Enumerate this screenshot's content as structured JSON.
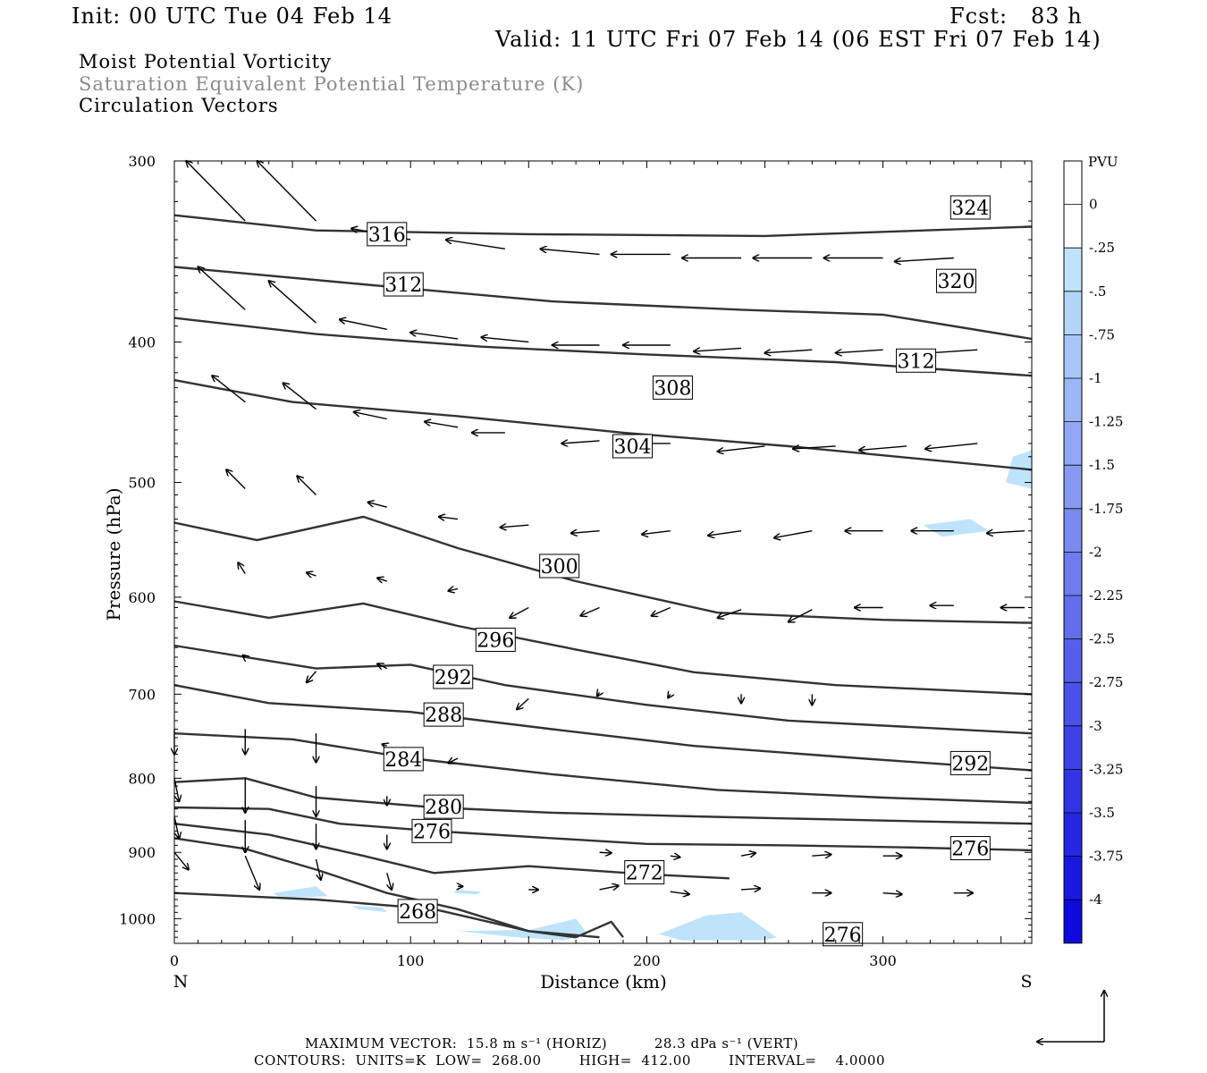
{
  "header": {
    "init": "Init: 00 UTC Tue 04 Feb 14",
    "fcst": "Fcst:   83 h",
    "valid": "Valid: 11 UTC Fri 07 Feb 14 (06 EST Fri 07 Feb 14)",
    "field1": "Moist Potential Vorticity",
    "field2": "Saturation Equivalent Potential Temperature (K)",
    "field3": "Circulation Vectors"
  },
  "footer": {
    "max_vector": "MAXIMUM VECTOR:  15.8 m s⁻¹ (HORIZ)          28.3 dPa s⁻¹ (VERT)",
    "contours": "CONTOURS:  UNITS=K  LOW=  268.00        HIGH=  412.00        INTERVAL=    4.0000"
  },
  "colors": {
    "contour": "#333333",
    "vector": "#000000",
    "shade_light": "#bfe3fb"
  },
  "chart_data": {
    "type": "cross-section",
    "xlabel": "Distance (km)",
    "ylabel": "Pressure (hPa)",
    "xlim": [
      0,
      363
    ],
    "ylim": [
      1040,
      300
    ],
    "y_log": true,
    "x_ticks": [
      0,
      100,
      200,
      300
    ],
    "y_ticks": [
      300,
      400,
      500,
      600,
      700,
      800,
      900,
      1000
    ],
    "x_end_labels": {
      "left": "N",
      "right": "S"
    },
    "colorbar": {
      "unit": "PVU",
      "levels": [
        "0",
        "-.25",
        "-.5",
        "-.75",
        "-1",
        "-1.25",
        "-1.5",
        "-1.75",
        "-2",
        "-2.25",
        "-2.5",
        "-2.75",
        "-3",
        "-3.25",
        "-3.5",
        "-3.75",
        "-4"
      ],
      "colors": [
        "#ffffff",
        "#ffffff",
        "#bfe3fb",
        "#b4d5fa",
        "#a9c6f8",
        "#9db7f6",
        "#92a8f4",
        "#869af2",
        "#7a8bf0",
        "#6e7cee",
        "#626eec",
        "#565fea",
        "#4a51e8",
        "#3e42e6",
        "#3234e4",
        "#2626e2",
        "#1a18e0",
        "#0e0ade"
      ]
    },
    "contour_labels": [
      {
        "v": "316",
        "x": 90,
        "p": 337
      },
      {
        "v": "312",
        "x": 97,
        "p": 365
      },
      {
        "v": "308",
        "x": 211,
        "p": 430
      },
      {
        "v": "304",
        "x": 194,
        "p": 472
      },
      {
        "v": "300",
        "x": 163,
        "p": 571
      },
      {
        "v": "296",
        "x": 136,
        "p": 642
      },
      {
        "v": "292",
        "x": 118,
        "p": 681
      },
      {
        "v": "288",
        "x": 114,
        "p": 723
      },
      {
        "v": "284",
        "x": 97,
        "p": 776
      },
      {
        "v": "280",
        "x": 114,
        "p": 837
      },
      {
        "v": "276",
        "x": 109,
        "p": 870
      },
      {
        "v": "272",
        "x": 199,
        "p": 929
      },
      {
        "v": "268",
        "x": 103,
        "p": 988
      },
      {
        "v": "324",
        "x": 337,
        "p": 323
      },
      {
        "v": "320",
        "x": 331,
        "p": 363
      },
      {
        "v": "312",
        "x": 314,
        "p": 412
      },
      {
        "v": "292",
        "x": 337,
        "p": 781
      },
      {
        "v": "276",
        "x": 337,
        "p": 894
      },
      {
        "v": "276",
        "x": 283,
        "p": 1025
      }
    ],
    "contours": [
      [
        [
          0,
          327
        ],
        [
          60,
          335
        ],
        [
          150,
          337
        ],
        [
          250,
          338
        ],
        [
          363,
          333
        ]
      ],
      [
        [
          0,
          355
        ],
        [
          80,
          365
        ],
        [
          160,
          375
        ],
        [
          240,
          380
        ],
        [
          300,
          383
        ],
        [
          363,
          398
        ]
      ],
      [
        [
          0,
          385
        ],
        [
          60,
          395
        ],
        [
          130,
          403
        ],
        [
          200,
          408
        ],
        [
          280,
          413
        ],
        [
          363,
          422
        ]
      ],
      [
        [
          0,
          425
        ],
        [
          50,
          440
        ],
        [
          120,
          450
        ],
        [
          190,
          462
        ],
        [
          260,
          472
        ],
        [
          363,
          490
        ]
      ],
      [
        [
          0,
          533
        ],
        [
          35,
          548
        ],
        [
          80,
          528
        ],
        [
          120,
          555
        ],
        [
          170,
          585
        ],
        [
          230,
          615
        ],
        [
          300,
          622
        ],
        [
          363,
          625
        ]
      ],
      [
        [
          0,
          604
        ],
        [
          40,
          620
        ],
        [
          80,
          606
        ],
        [
          120,
          628
        ],
        [
          170,
          652
        ],
        [
          220,
          676
        ],
        [
          280,
          690
        ],
        [
          363,
          700
        ]
      ],
      [
        [
          0,
          648
        ],
        [
          60,
          672
        ],
        [
          100,
          668
        ],
        [
          140,
          690
        ],
        [
          200,
          712
        ],
        [
          260,
          730
        ],
        [
          363,
          745
        ]
      ],
      [
        [
          0,
          690
        ],
        [
          40,
          710
        ],
        [
          100,
          720
        ],
        [
          160,
          740
        ],
        [
          220,
          760
        ],
        [
          290,
          775
        ],
        [
          363,
          790
        ]
      ],
      [
        [
          0,
          745
        ],
        [
          50,
          752
        ],
        [
          100,
          775
        ],
        [
          160,
          795
        ],
        [
          230,
          815
        ],
        [
          300,
          825
        ],
        [
          363,
          832
        ]
      ],
      [
        [
          0,
          805
        ],
        [
          30,
          800
        ],
        [
          60,
          825
        ],
        [
          110,
          838
        ],
        [
          160,
          845
        ],
        [
          220,
          850
        ],
        [
          290,
          855
        ],
        [
          363,
          860
        ]
      ],
      [
        [
          0,
          838
        ],
        [
          40,
          840
        ],
        [
          70,
          860
        ],
        [
          110,
          870
        ],
        [
          160,
          880
        ],
        [
          200,
          888
        ],
        [
          260,
          890
        ],
        [
          310,
          893
        ],
        [
          363,
          897
        ]
      ],
      [
        [
          0,
          860
        ],
        [
          40,
          875
        ],
        [
          80,
          905
        ],
        [
          110,
          930
        ],
        [
          150,
          920
        ],
        [
          200,
          932
        ],
        [
          235,
          938
        ]
      ],
      [
        [
          0,
          880
        ],
        [
          30,
          895
        ],
        [
          60,
          925
        ],
        [
          90,
          960
        ],
        [
          120,
          985
        ],
        [
          150,
          1020
        ],
        [
          170,
          1030
        ],
        [
          185,
          1005
        ],
        [
          190,
          1030
        ]
      ],
      [
        [
          0,
          960
        ],
        [
          60,
          970
        ],
        [
          110,
          985
        ],
        [
          150,
          1020
        ],
        [
          180,
          1030
        ]
      ]
    ],
    "shades": [
      {
        "x": [
          42,
          60,
          65,
          45
        ],
        "p": [
          960,
          950,
          965,
          968
        ]
      },
      {
        "x": [
          120,
          130,
          128,
          118
        ],
        "p": [
          955,
          958,
          962,
          960
        ]
      },
      {
        "x": [
          75,
          88,
          90,
          78
        ],
        "p": [
          980,
          982,
          990,
          985
        ]
      },
      {
        "x": [
          317,
          337,
          345,
          325
        ],
        "p": [
          535,
          530,
          540,
          545
        ]
      },
      {
        "x": [
          355,
          363,
          363,
          352
        ],
        "p": [
          480,
          475,
          505,
          500
        ]
      },
      {
        "x": [
          120,
          150,
          170,
          175,
          165,
          145
        ],
        "p": [
          1020,
          1018,
          1000,
          1025,
          1035,
          1030
        ]
      },
      {
        "x": [
          205,
          225,
          240,
          255,
          250,
          215
        ],
        "p": [
          1025,
          995,
          990,
          1030,
          1035,
          1035
        ]
      }
    ],
    "vectors": [
      {
        "x": 30,
        "p": 330,
        "dx": -25,
        "dp": -30
      },
      {
        "x": 60,
        "p": 330,
        "dx": -25,
        "dp": -30
      },
      {
        "x": 100,
        "p": 340,
        "dx": -25,
        "dp": -6
      },
      {
        "x": 140,
        "p": 345,
        "dx": -25,
        "dp": -5
      },
      {
        "x": 180,
        "p": 348,
        "dx": -25,
        "dp": -3
      },
      {
        "x": 210,
        "p": 348,
        "dx": -25,
        "dp": 0
      },
      {
        "x": 240,
        "p": 350,
        "dx": -25,
        "dp": 0
      },
      {
        "x": 270,
        "p": 350,
        "dx": -25,
        "dp": 0
      },
      {
        "x": 300,
        "p": 350,
        "dx": -25,
        "dp": 0
      },
      {
        "x": 330,
        "p": 350,
        "dx": -25,
        "dp": 2
      },
      {
        "x": 30,
        "p": 380,
        "dx": -20,
        "dp": -25
      },
      {
        "x": 60,
        "p": 388,
        "dx": -20,
        "dp": -25
      },
      {
        "x": 90,
        "p": 392,
        "dx": -20,
        "dp": -6
      },
      {
        "x": 120,
        "p": 398,
        "dx": -20,
        "dp": -4
      },
      {
        "x": 150,
        "p": 400,
        "dx": -20,
        "dp": -3
      },
      {
        "x": 180,
        "p": 402,
        "dx": -20,
        "dp": 0
      },
      {
        "x": 210,
        "p": 402,
        "dx": -20,
        "dp": 0
      },
      {
        "x": 240,
        "p": 404,
        "dx": -20,
        "dp": 2
      },
      {
        "x": 270,
        "p": 405,
        "dx": -20,
        "dp": 2
      },
      {
        "x": 300,
        "p": 405,
        "dx": -20,
        "dp": 2
      },
      {
        "x": 340,
        "p": 405,
        "dx": -20,
        "dp": 2
      },
      {
        "x": 30,
        "p": 440,
        "dx": -14,
        "dp": -18
      },
      {
        "x": 60,
        "p": 445,
        "dx": -14,
        "dp": -18
      },
      {
        "x": 90,
        "p": 452,
        "dx": -14,
        "dp": -5
      },
      {
        "x": 120,
        "p": 458,
        "dx": -14,
        "dp": -4
      },
      {
        "x": 140,
        "p": 462,
        "dx": -14,
        "dp": 0
      },
      {
        "x": 180,
        "p": 468,
        "dx": -16,
        "dp": 2
      },
      {
        "x": 210,
        "p": 470,
        "dx": -20,
        "dp": 0
      },
      {
        "x": 250,
        "p": 472,
        "dx": -20,
        "dp": 4
      },
      {
        "x": 280,
        "p": 472,
        "dx": -18,
        "dp": 2
      },
      {
        "x": 310,
        "p": 472,
        "dx": -20,
        "dp": 3
      },
      {
        "x": 340,
        "p": 470,
        "dx": -22,
        "dp": 4
      },
      {
        "x": 30,
        "p": 505,
        "dx": -8,
        "dp": -15
      },
      {
        "x": 60,
        "p": 510,
        "dx": -8,
        "dp": -15
      },
      {
        "x": 90,
        "p": 520,
        "dx": -8,
        "dp": -4
      },
      {
        "x": 120,
        "p": 530,
        "dx": -8,
        "dp": -2
      },
      {
        "x": 150,
        "p": 535,
        "dx": -12,
        "dp": 2
      },
      {
        "x": 180,
        "p": 540,
        "dx": -12,
        "dp": 2
      },
      {
        "x": 210,
        "p": 540,
        "dx": -12,
        "dp": 3
      },
      {
        "x": 240,
        "p": 540,
        "dx": -14,
        "dp": 4
      },
      {
        "x": 270,
        "p": 540,
        "dx": -16,
        "dp": 6
      },
      {
        "x": 300,
        "p": 540,
        "dx": -16,
        "dp": 0
      },
      {
        "x": 330,
        "p": 540,
        "dx": -18,
        "dp": 0
      },
      {
        "x": 360,
        "p": 540,
        "dx": -16,
        "dp": 2
      },
      {
        "x": 30,
        "p": 578,
        "dx": -3,
        "dp": -10
      },
      {
        "x": 60,
        "p": 580,
        "dx": -4,
        "dp": -3
      },
      {
        "x": 90,
        "p": 585,
        "dx": -4,
        "dp": -3
      },
      {
        "x": 120,
        "p": 592,
        "dx": -4,
        "dp": 2
      },
      {
        "x": 150,
        "p": 610,
        "dx": -8,
        "dp": 10
      },
      {
        "x": 180,
        "p": 610,
        "dx": -8,
        "dp": 8
      },
      {
        "x": 210,
        "p": 610,
        "dx": -8,
        "dp": 8
      },
      {
        "x": 240,
        "p": 612,
        "dx": -10,
        "dp": 8
      },
      {
        "x": 270,
        "p": 612,
        "dx": -10,
        "dp": 12
      },
      {
        "x": 300,
        "p": 610,
        "dx": -12,
        "dp": 0
      },
      {
        "x": 330,
        "p": 608,
        "dx": -10,
        "dp": 0
      },
      {
        "x": 360,
        "p": 610,
        "dx": -10,
        "dp": 0
      },
      {
        "x": 30,
        "p": 660,
        "dx": -1,
        "dp": -2
      },
      {
        "x": 60,
        "p": 675,
        "dx": -4,
        "dp": 12
      },
      {
        "x": 90,
        "p": 672,
        "dx": -4,
        "dp": -5
      },
      {
        "x": 150,
        "p": 705,
        "dx": -5,
        "dp": 12
      },
      {
        "x": 180,
        "p": 698,
        "dx": -1,
        "dp": 4
      },
      {
        "x": 210,
        "p": 700,
        "dx": -1,
        "dp": 4
      },
      {
        "x": 240,
        "p": 700,
        "dx": 0,
        "dp": 10
      },
      {
        "x": 270,
        "p": 700,
        "dx": 0,
        "dp": 12
      },
      {
        "x": 0,
        "p": 740,
        "dx": 0,
        "dp": 30
      },
      {
        "x": 30,
        "p": 740,
        "dx": 0,
        "dp": 30
      },
      {
        "x": 60,
        "p": 745,
        "dx": 0,
        "dp": 35
      },
      {
        "x": 90,
        "p": 760,
        "dx": -2,
        "dp": -2
      },
      {
        "x": 120,
        "p": 775,
        "dx": -4,
        "dp": 6
      },
      {
        "x": 0,
        "p": 800,
        "dx": 2,
        "dp": 30
      },
      {
        "x": 30,
        "p": 800,
        "dx": 0,
        "dp": 45
      },
      {
        "x": 60,
        "p": 810,
        "dx": 0,
        "dp": 40
      },
      {
        "x": 90,
        "p": 823,
        "dx": 0,
        "dp": 12
      },
      {
        "x": 0,
        "p": 850,
        "dx": 2,
        "dp": 30
      },
      {
        "x": 30,
        "p": 855,
        "dx": 0,
        "dp": 45
      },
      {
        "x": 60,
        "p": 860,
        "dx": 0,
        "dp": 35
      },
      {
        "x": 90,
        "p": 875,
        "dx": 0,
        "dp": 20
      },
      {
        "x": 0,
        "p": 900,
        "dx": 6,
        "dp": 25
      },
      {
        "x": 30,
        "p": 905,
        "dx": 6,
        "dp": 50
      },
      {
        "x": 60,
        "p": 910,
        "dx": 2,
        "dp": 30
      },
      {
        "x": 90,
        "p": 930,
        "dx": 2,
        "dp": 25
      },
      {
        "x": 180,
        "p": 900,
        "dx": 5,
        "dp": 1
      },
      {
        "x": 210,
        "p": 905,
        "dx": 4,
        "dp": 2
      },
      {
        "x": 240,
        "p": 905,
        "dx": 6,
        "dp": -4
      },
      {
        "x": 270,
        "p": 905,
        "dx": 8,
        "dp": -2
      },
      {
        "x": 300,
        "p": 905,
        "dx": 8,
        "dp": 0
      },
      {
        "x": 330,
        "p": 905,
        "dx": 6,
        "dp": 0
      },
      {
        "x": 120,
        "p": 950,
        "dx": 2,
        "dp": 0
      },
      {
        "x": 150,
        "p": 955,
        "dx": 4,
        "dp": 0
      },
      {
        "x": 180,
        "p": 955,
        "dx": 8,
        "dp": -6
      },
      {
        "x": 210,
        "p": 958,
        "dx": 8,
        "dp": 4
      },
      {
        "x": 240,
        "p": 955,
        "dx": 8,
        "dp": -2
      },
      {
        "x": 270,
        "p": 960,
        "dx": 8,
        "dp": 0
      },
      {
        "x": 300,
        "p": 960,
        "dx": 8,
        "dp": 2
      },
      {
        "x": 330,
        "p": 960,
        "dx": 8,
        "dp": 0
      }
    ]
  }
}
